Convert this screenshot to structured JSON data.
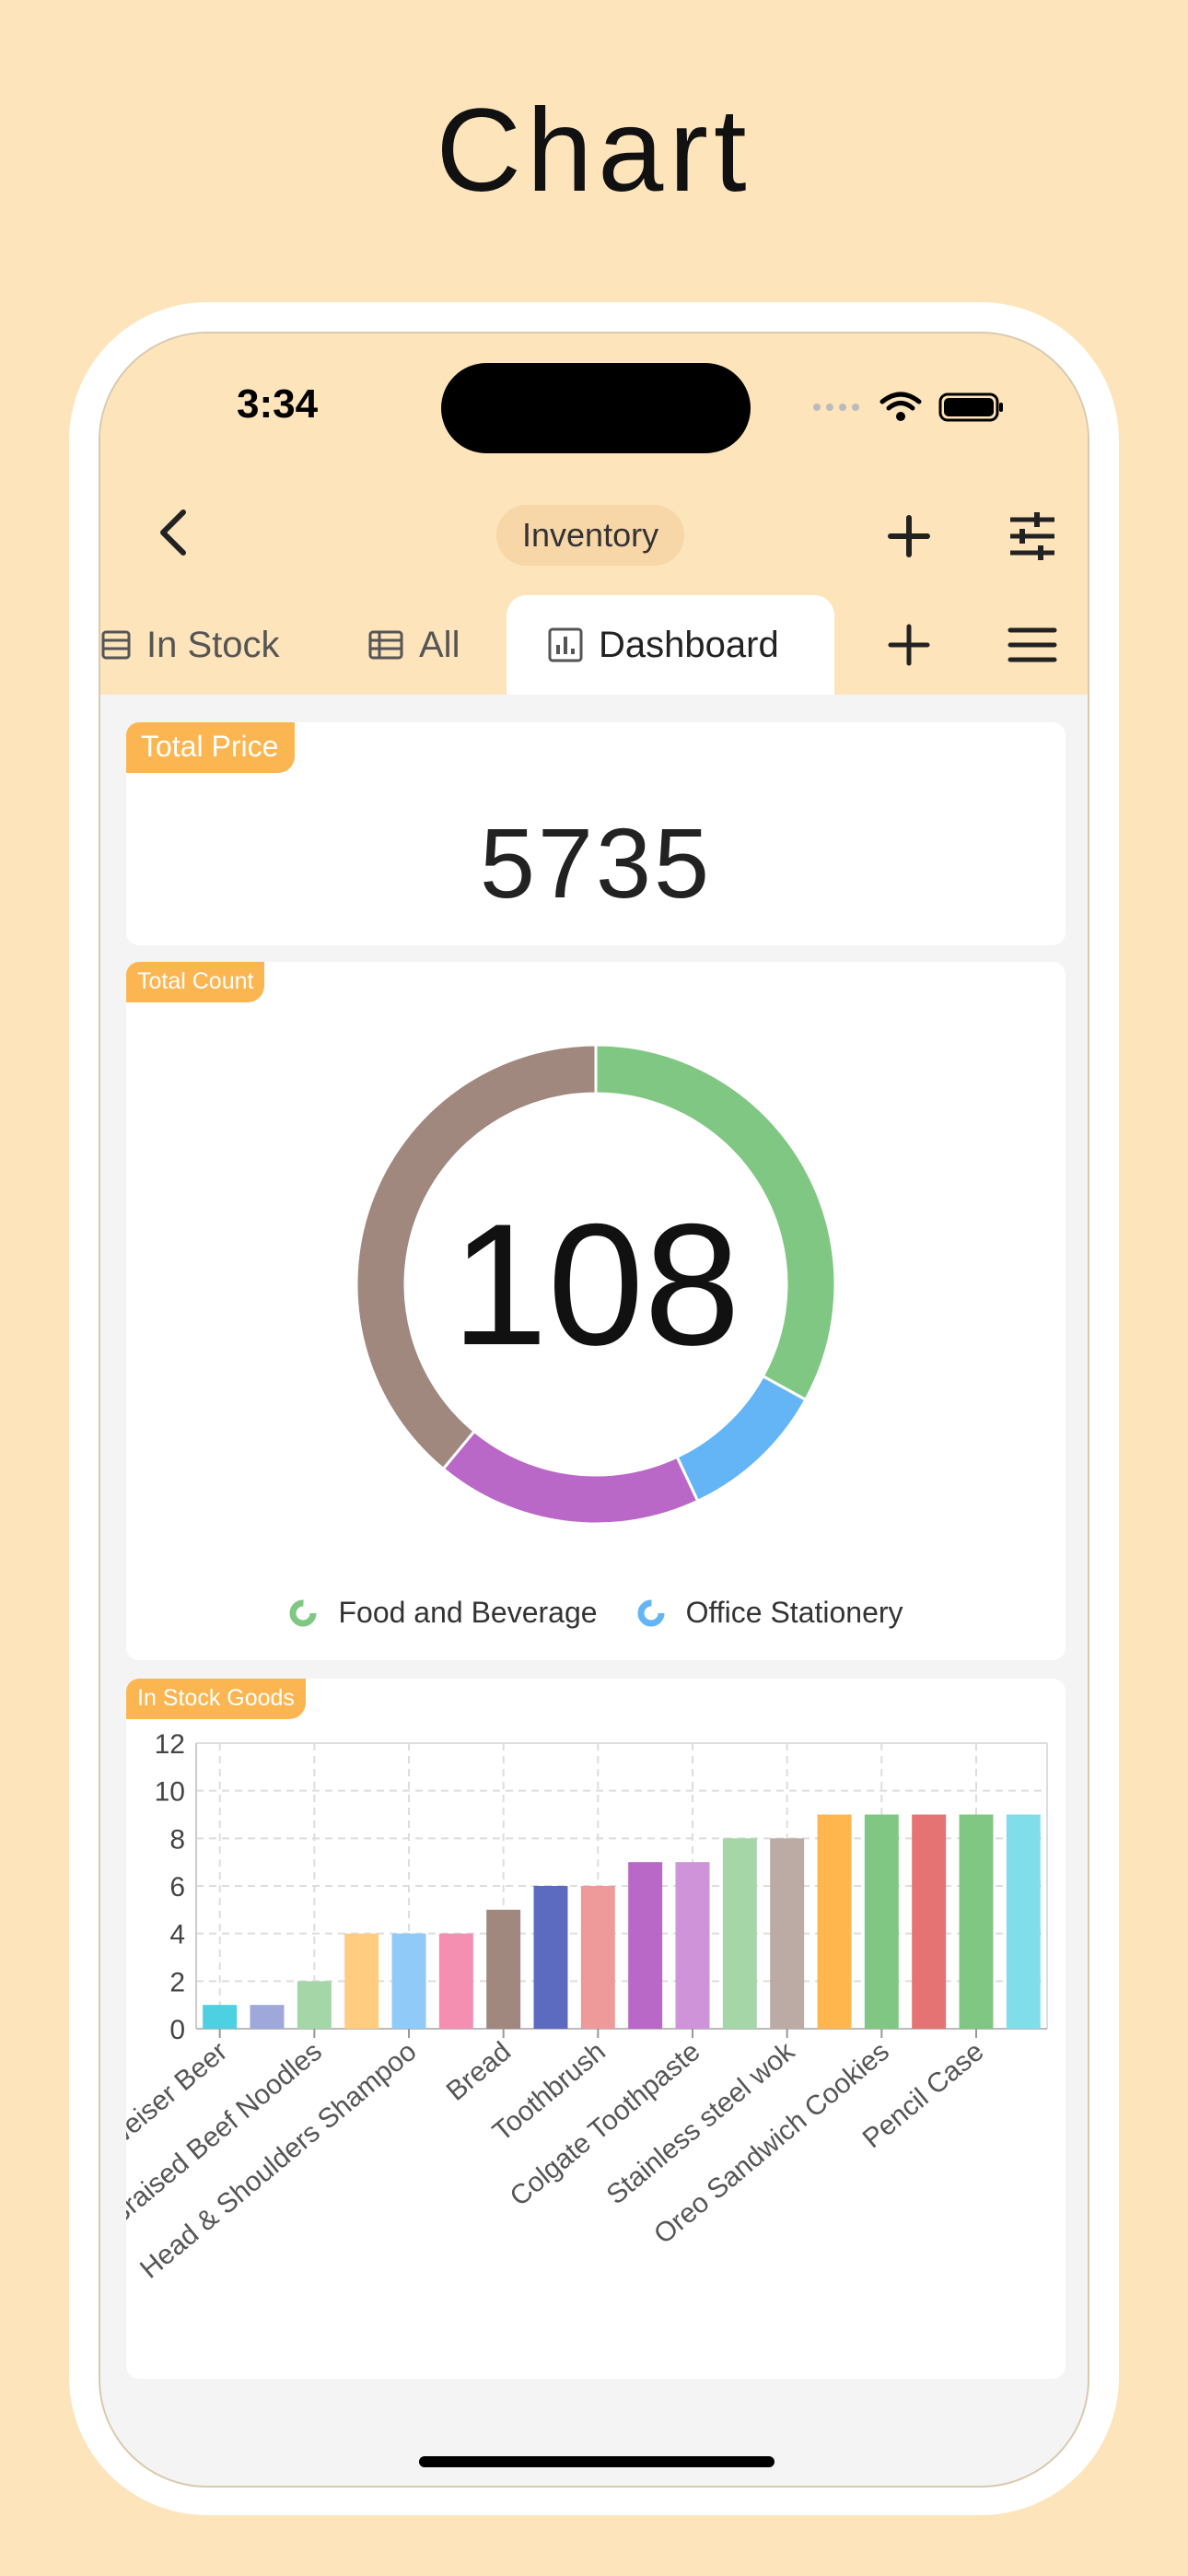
{
  "heading": "Chart",
  "status": {
    "time": "3:34"
  },
  "nav": {
    "title": "Inventory"
  },
  "tabs": [
    {
      "label": "In Stock",
      "icon": "list-icon"
    },
    {
      "label": "All",
      "icon": "table-icon"
    },
    {
      "label": "Dashboard",
      "icon": "bar-chart-icon",
      "active": true
    }
  ],
  "total_price": {
    "label": "Total Price",
    "value": "5735"
  },
  "total_count": {
    "label": "Total Count",
    "value": "108",
    "legend": [
      {
        "name": "Food and Beverage",
        "color": "#81c784"
      },
      {
        "name": "Office Stationery",
        "color": "#64b5f6"
      }
    ]
  },
  "in_stock": {
    "label": "In Stock Goods"
  },
  "chart_data": [
    {
      "type": "pie",
      "title": "Total Count",
      "center_value": 108,
      "slices": [
        {
          "name": "Food and Beverage",
          "percent": 33,
          "color": "#81c784"
        },
        {
          "name": "Office Stationery",
          "percent": 10,
          "color": "#64b5f6"
        },
        {
          "color": "#ba68c8",
          "percent": 18
        },
        {
          "color": "#a1887f",
          "percent": 39
        }
      ]
    },
    {
      "type": "bar",
      "title": "In Stock Goods",
      "ylim": [
        0,
        12
      ],
      "yticks": [
        0,
        2,
        4,
        6,
        8,
        10,
        12
      ],
      "grid": true,
      "x_tick_labels": [
        "Budweiser Beer",
        "Braised Beef Noodles",
        "Head & Shoulders Shampoo",
        "Bread",
        "Toothbrush",
        "Colgate Toothpaste",
        "Stainless steel wok",
        "Oreo Sandwich Cookies",
        "Pencil Case"
      ],
      "values": [
        1,
        1,
        2,
        4,
        4,
        4,
        5,
        6,
        6,
        7,
        7,
        8,
        8,
        9,
        9,
        9,
        9,
        9
      ],
      "colors": [
        "#4dd0e1",
        "#9fa8da",
        "#a5d6a7",
        "#ffcc80",
        "#90caf9",
        "#f48fb1",
        "#a1887f",
        "#5c6bc0",
        "#ef9a9a",
        "#ba68c8",
        "#ce93d8",
        "#a5d6a7",
        "#bcaaa4",
        "#ffb74d",
        "#81c784",
        "#e57373",
        "#81c784",
        "#80deea"
      ]
    }
  ]
}
